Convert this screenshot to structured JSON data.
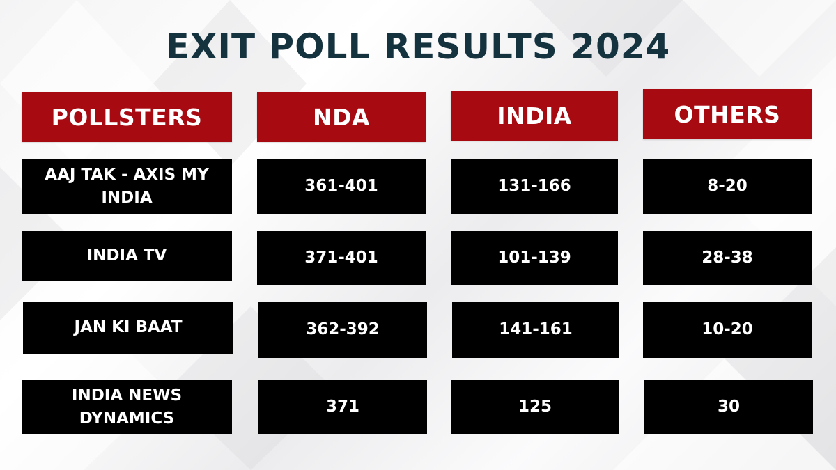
{
  "title": "EXIT POLL RESULTS 2024",
  "headers": [
    "POLLSTERS",
    "NDA",
    "INDIA",
    "OTHERS"
  ],
  "rows": [
    {
      "pollster": "AAJ TAK - AXIS MY INDIA",
      "nda": "361-401",
      "india": "131-166",
      "others": "8-20"
    },
    {
      "pollster": "INDIA TV",
      "nda": "371-401",
      "india": "101-139",
      "others": "28-38"
    },
    {
      "pollster": "JAN KI BAAT",
      "nda": "362-392",
      "india": "141-161",
      "others": "10-20"
    },
    {
      "pollster": "INDIA NEWS DYNAMICS",
      "nda": "371",
      "india": "125",
      "others": "30"
    }
  ],
  "colors": {
    "title": "#15323f",
    "header_bg": "#a80a12",
    "cell_bg": "#000000",
    "cell_text": "#ffffff"
  }
}
